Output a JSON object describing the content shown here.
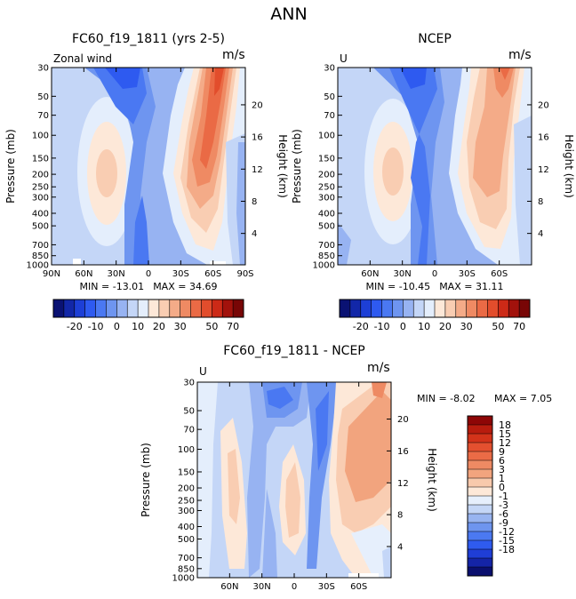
{
  "figure_title": "ANN",
  "colors": {
    "scale_neg": [
      "#0a1273",
      "#1227a8",
      "#1d3fd6",
      "#2e5af0",
      "#4a78f2",
      "#6e95f0",
      "#97b3f2",
      "#c4d6f7",
      "#e4eefc"
    ],
    "scale_pos": [
      "#fde8d8",
      "#f9cdb2",
      "#f4ab88",
      "#ef8a63",
      "#ea6a45",
      "#e24d2c",
      "#cc2a17",
      "#a2120c",
      "#780606"
    ],
    "diff_scale": [
      "#0a0f6e",
      "#1424a6",
      "#1f3ed6",
      "#2f5bef",
      "#4b79f1",
      "#6e95ef",
      "#98b4f0",
      "#c4d6f6",
      "#e6effc",
      "#fde8d8",
      "#f8c9ac",
      "#f2a47e",
      "#ee8a63",
      "#ea6b46",
      "#e4502f",
      "#d3331a",
      "#b81c0e",
      "#8e0606"
    ]
  },
  "chart_data": [
    {
      "type": "contour",
      "title": "FC60_f19_1811 (yrs 2-5)",
      "variable_label": "Zonal wind",
      "units": "m/s",
      "ylabel": "Pressure (mb)",
      "ylabel_right": "Height (km)",
      "y_ticks": [
        "30",
        "50",
        "70",
        "100",
        "150",
        "200",
        "250",
        "300",
        "400",
        "500",
        "700",
        "850",
        "1000"
      ],
      "y_ticks_right": [
        "20",
        "16",
        "12",
        "8",
        "4"
      ],
      "x_ticks": [
        "90N",
        "60N",
        "30N",
        "0",
        "30S",
        "60S",
        "90S"
      ],
      "xlim": [
        90,
        -90
      ],
      "ylim_mb": [
        1000,
        30
      ],
      "min_label": "MIN = -13.01",
      "max_label": "MAX =  34.69",
      "min": -13.01,
      "max": 34.69,
      "colorbar_levels": [
        -25,
        -20,
        -15,
        -10,
        -5,
        0,
        5,
        10,
        15,
        20,
        25,
        30,
        35,
        40,
        50,
        60,
        70
      ],
      "colorbar_tick_labels": [
        "-20",
        "-10",
        "0",
        "10",
        "20",
        "30",
        "50",
        "70"
      ]
    },
    {
      "type": "contour",
      "title": "NCEP",
      "variable_label": "U",
      "units": "m/s",
      "ylabel": "Pressure (mb)",
      "ylabel_right": "Height (km)",
      "y_ticks": [
        "30",
        "50",
        "70",
        "100",
        "150",
        "200",
        "250",
        "300",
        "400",
        "500",
        "700",
        "850",
        "1000"
      ],
      "y_ticks_right": [
        "20",
        "16",
        "12",
        "8",
        "4"
      ],
      "x_ticks": [
        "60N",
        "30N",
        "0",
        "30S",
        "60S"
      ],
      "xlim": [
        90,
        -90
      ],
      "ylim_mb": [
        1000,
        30
      ],
      "min_label": "MIN = -10.45",
      "max_label": "MAX =  31.11",
      "min": -10.45,
      "max": 31.11,
      "colorbar_levels": [
        -25,
        -20,
        -15,
        -10,
        -5,
        0,
        5,
        10,
        15,
        20,
        25,
        30,
        35,
        40,
        50,
        60,
        70
      ],
      "colorbar_tick_labels": [
        "-20",
        "-10",
        "0",
        "10",
        "20",
        "30",
        "50",
        "70"
      ]
    },
    {
      "type": "contour",
      "title": "FC60_f19_1811 - NCEP",
      "variable_label": "U",
      "units": "m/s",
      "ylabel": "Pressure (mb)",
      "ylabel_right": "Height (km)",
      "y_ticks": [
        "30",
        "50",
        "70",
        "100",
        "150",
        "200",
        "250",
        "300",
        "400",
        "500",
        "700",
        "850",
        "1000"
      ],
      "y_ticks_right": [
        "20",
        "16",
        "12",
        "8",
        "4"
      ],
      "x_ticks": [
        "60N",
        "30N",
        "0",
        "30S",
        "60S"
      ],
      "xlim": [
        90,
        -90
      ],
      "ylim_mb": [
        1000,
        30
      ],
      "min_label": "MIN =   -8.02",
      "max_label": "MAX =    7.05",
      "min": -8.02,
      "max": 7.05,
      "colorbar_levels": [
        -18,
        -15,
        -12,
        -9,
        -6,
        -3,
        -1,
        0,
        1,
        3,
        6,
        9,
        12,
        15,
        18
      ],
      "colorbar_tick_labels": [
        "18",
        "15",
        "12",
        "9",
        "6",
        "3",
        "1",
        "0",
        "-1",
        "-3",
        "-6",
        "-9",
        "-12",
        "-15",
        "-18"
      ]
    }
  ]
}
